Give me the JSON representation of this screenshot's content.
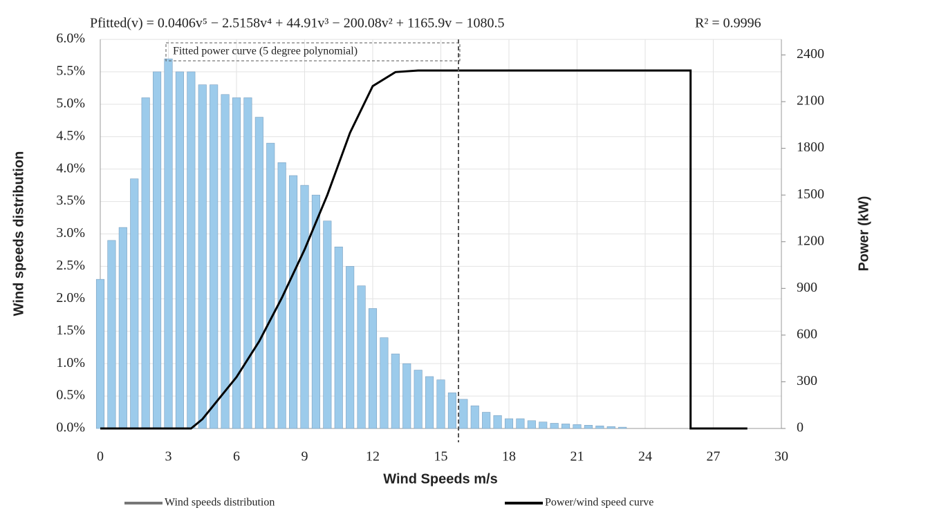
{
  "chart_data": {
    "type": "combo",
    "title": "Pfitted(v) = 0.0406v⁵ − 2.5158v⁴ + 44.91v³ − 200.08v² + 1165.9v − 1080.5",
    "subtitle": "R² = 0.9996",
    "annotation": "Fitted power curve (5 degree polynomial)",
    "x_label": "Wind Speeds m/s",
    "y_label": "Wind speeds distribution",
    "y2_label": "Power (kW)",
    "xlim": [
      0,
      30
    ],
    "xticks": [
      0,
      3,
      6,
      9,
      12,
      15,
      18,
      21,
      24,
      27,
      30
    ],
    "ylim": [
      0,
      6
    ],
    "yticks": [
      {
        "value": 0,
        "label": "0.0%"
      },
      {
        "value": 0.5,
        "label": "0.5%"
      },
      {
        "value": 1,
        "label": "1.0%"
      },
      {
        "value": 1.5,
        "label": "1.5%"
      },
      {
        "value": 2,
        "label": "2.0%"
      },
      {
        "value": 2.5,
        "label": "2.5%"
      },
      {
        "value": 3,
        "label": "3.0%"
      },
      {
        "value": 3.5,
        "label": "3.5%"
      },
      {
        "value": 4,
        "label": "4.0%"
      },
      {
        "value": 4.5,
        "label": "4.5%"
      },
      {
        "value": 5,
        "label": "5.0%"
      },
      {
        "value": 5.5,
        "label": "5.5%"
      },
      {
        "value": 6,
        "label": "6.0%"
      }
    ],
    "y2lim": [
      0,
      2500
    ],
    "y2ticks": [
      0,
      300,
      600,
      900,
      1200,
      1500,
      1800,
      2100,
      2400
    ],
    "grid": true,
    "series": [
      {
        "name": "Wind speeds distribution",
        "type": "bar",
        "color": "#9ccbeb",
        "x": [
          0,
          0.5,
          1,
          1.5,
          2,
          2.5,
          3,
          3.5,
          4,
          4.5,
          5,
          5.5,
          6,
          6.5,
          7,
          7.5,
          8,
          8.5,
          9,
          9.5,
          10,
          10.5,
          11,
          11.5,
          12,
          12.5,
          13,
          13.5,
          14,
          14.5,
          15,
          15.5,
          16,
          16.5,
          17,
          17.5,
          18,
          18.5,
          19,
          19.5,
          20,
          20.5,
          21,
          21.5,
          22,
          22.5,
          23
        ],
        "values": [
          2.3,
          2.9,
          3.1,
          3.85,
          5.1,
          5.5,
          5.7,
          5.5,
          5.5,
          5.3,
          5.3,
          5.15,
          5.1,
          5.1,
          4.8,
          4.4,
          4.1,
          3.9,
          3.75,
          3.6,
          3.2,
          2.8,
          2.5,
          2.2,
          1.85,
          1.4,
          1.15,
          1.0,
          0.9,
          0.8,
          0.75,
          0.55,
          0.45,
          0.35,
          0.25,
          0.2,
          0.15,
          0.15,
          0.12,
          0.1,
          0.08,
          0.07,
          0.06,
          0.05,
          0.04,
          0.03,
          0.02
        ]
      },
      {
        "name": "Power/wind speed curve",
        "type": "line",
        "axis": "y2",
        "color": "#000000",
        "x": [
          0,
          4,
          4.5,
          5,
          6,
          7,
          8,
          9,
          10,
          11,
          12,
          13,
          14,
          26,
          26,
          28.5
        ],
        "values": [
          0,
          0,
          60,
          150,
          330,
          560,
          840,
          1150,
          1500,
          1900,
          2200,
          2290,
          2300,
          2300,
          0,
          0
        ]
      }
    ]
  }
}
